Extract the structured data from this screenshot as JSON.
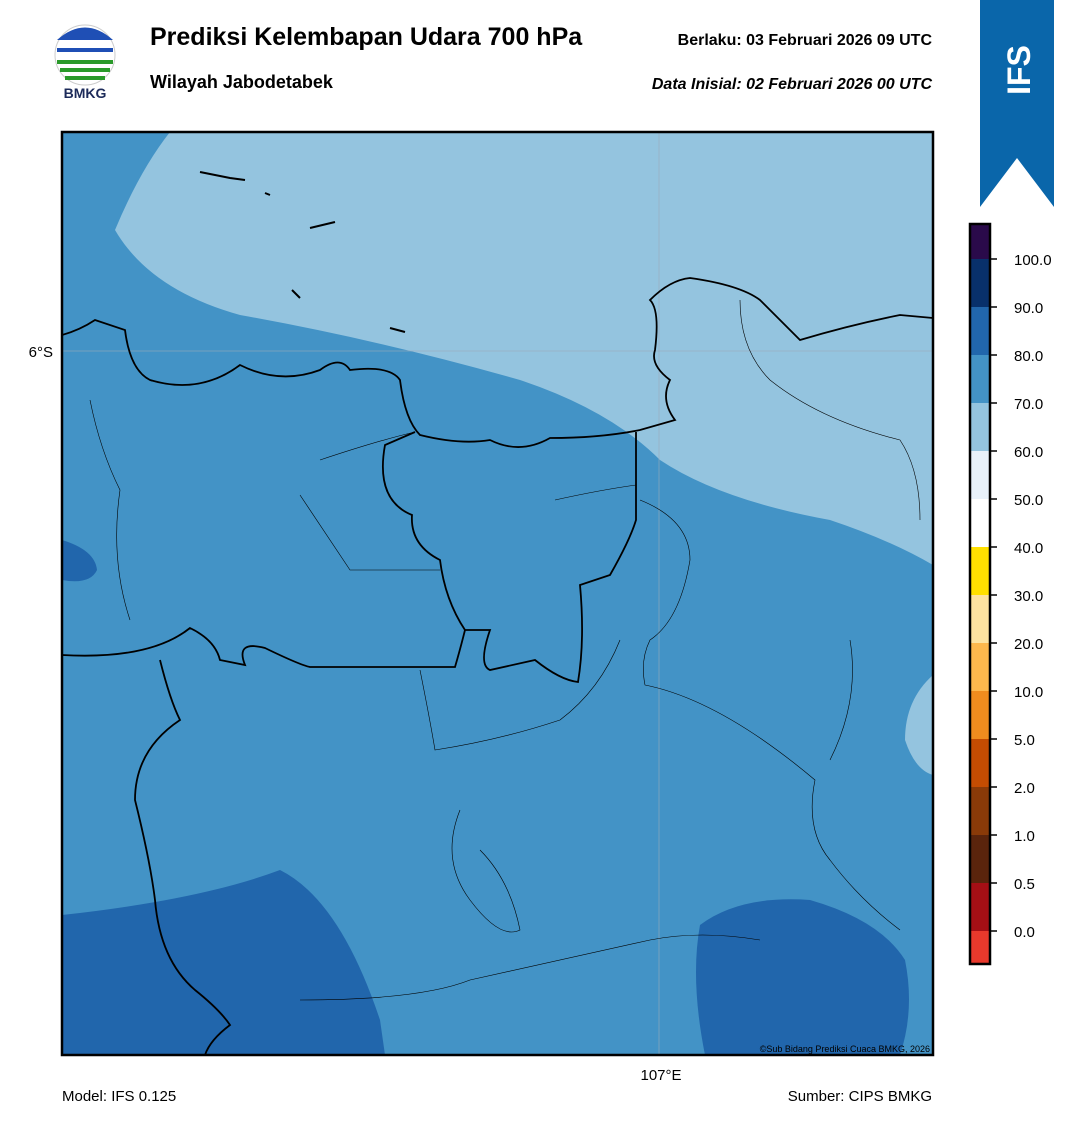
{
  "header": {
    "title": "Prediksi Kelembapan Udara 700 hPa",
    "subtitle": "Wilayah Jabodetabek",
    "valid": "Berlaku:  03 Februari 2026 09 UTC",
    "initial": "Data Inisial:  02 Februari 2026 00 UTC",
    "logo": "BMKG",
    "badge": "IFS"
  },
  "map": {
    "lat_label": "6°S",
    "lon_label": "107°E",
    "credit": "©Sub Bidang Prediksi Cuaca BMKG, 2026"
  },
  "colorbar": {
    "labels": [
      "0.0",
      "0.5",
      "1.0",
      "2.0",
      "5.0",
      "10.0",
      "20.0",
      "30.0",
      "40.0",
      "50.0",
      "60.0",
      "70.0",
      "80.0",
      "90.0",
      "100.0"
    ],
    "colors": [
      "#e8392c",
      "#a50f15",
      "#5a240c",
      "#8a3a08",
      "#c44c02",
      "#f08c1e",
      "#fdb84d",
      "#fde3a0",
      "#ffe000",
      "#ffffff",
      "#e8f1fa",
      "#94c4df",
      "#4393c6",
      "#2166ac",
      "#08306b",
      "#2a0a4a"
    ]
  },
  "footer": {
    "model": "Model: IFS 0.125",
    "source": "Sumber: CIPS BMKG"
  }
}
